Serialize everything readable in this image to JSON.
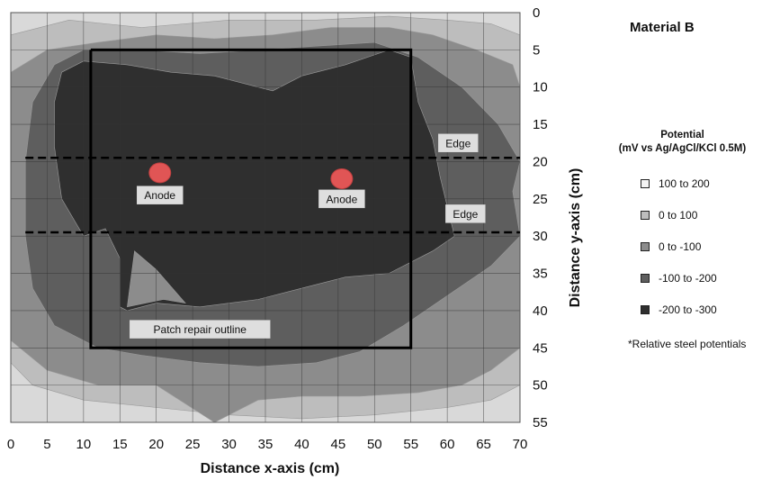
{
  "chart_data": {
    "type": "heatmap",
    "title": "Material B",
    "xlabel": "Distance x-axis (cm)",
    "ylabel": "Distance y-axis (cm)",
    "xlim": [
      0,
      70
    ],
    "ylim": [
      0,
      55
    ],
    "y_inverted": true,
    "x_ticks": [
      0,
      5,
      10,
      15,
      20,
      25,
      30,
      35,
      40,
      45,
      50,
      55,
      60,
      65,
      70
    ],
    "y_ticks": [
      0,
      5,
      10,
      15,
      20,
      25,
      30,
      35,
      40,
      45,
      50,
      55
    ],
    "grid": true,
    "legend": {
      "title_line1": "Potential",
      "title_line2": "(mV vs Ag/AgCl/KCl 0.5M)",
      "position": "right",
      "items": [
        {
          "label": "100 to 200",
          "color": "#f4f4f4"
        },
        {
          "label": "0 to 100",
          "color": "#bdbdbd"
        },
        {
          "label": "0 to -100",
          "color": "#8c8c8c"
        },
        {
          "label": "-100 to -200",
          "color": "#5e5e5e"
        },
        {
          "label": "-200 to -300",
          "color": "#2f2f2f"
        }
      ]
    },
    "note": "*Relative steel potentials",
    "contours": [
      {
        "level": "0 to 100",
        "points": [
          [
            0,
            3
          ],
          [
            8,
            1
          ],
          [
            18,
            2
          ],
          [
            30,
            1
          ],
          [
            42,
            1
          ],
          [
            52,
            0.5
          ],
          [
            60,
            1
          ],
          [
            66,
            1.5
          ],
          [
            70,
            3
          ],
          [
            70,
            50
          ],
          [
            66,
            52
          ],
          [
            60,
            53
          ],
          [
            50,
            54
          ],
          [
            40,
            54.5
          ],
          [
            30,
            54
          ],
          [
            20,
            53
          ],
          [
            10,
            52
          ],
          [
            3,
            50
          ],
          [
            0,
            47
          ]
        ]
      },
      {
        "level": "0 to -100",
        "points": [
          [
            0,
            8
          ],
          [
            5,
            5
          ],
          [
            12,
            4
          ],
          [
            20,
            3
          ],
          [
            28,
            3.5
          ],
          [
            36,
            3
          ],
          [
            44,
            2
          ],
          [
            52,
            2
          ],
          [
            58,
            3
          ],
          [
            64,
            5
          ],
          [
            69,
            7
          ],
          [
            70,
            10
          ],
          [
            70,
            45
          ],
          [
            66,
            48
          ],
          [
            62,
            50
          ],
          [
            56,
            51
          ],
          [
            48,
            51.5
          ],
          [
            40,
            51.5
          ],
          [
            34,
            52
          ],
          [
            28,
            55
          ],
          [
            20,
            50
          ],
          [
            12,
            50
          ],
          [
            5,
            48
          ],
          [
            0,
            44
          ]
        ]
      },
      {
        "level": "-100 to -200",
        "points": [
          [
            3,
            12
          ],
          [
            6,
            7
          ],
          [
            10,
            5
          ],
          [
            18,
            5
          ],
          [
            26,
            5.5
          ],
          [
            34,
            5
          ],
          [
            42,
            4.5
          ],
          [
            50,
            4
          ],
          [
            56,
            6
          ],
          [
            62,
            10
          ],
          [
            67,
            15
          ],
          [
            70,
            20
          ],
          [
            69,
            24
          ],
          [
            70,
            30
          ],
          [
            66,
            34
          ],
          [
            60,
            38
          ],
          [
            54,
            42
          ],
          [
            48,
            45.5
          ],
          [
            42,
            47
          ],
          [
            34,
            47.5
          ],
          [
            26,
            47
          ],
          [
            18,
            46
          ],
          [
            12,
            45
          ],
          [
            6,
            42
          ],
          [
            3,
            37
          ],
          [
            2,
            30
          ],
          [
            2,
            20
          ]
        ]
      },
      {
        "level": "-200 to -300",
        "points": [
          [
            7,
            8
          ],
          [
            10,
            6.5
          ],
          [
            16,
            7
          ],
          [
            22,
            8
          ],
          [
            28,
            8.5
          ],
          [
            36,
            10.5
          ],
          [
            40,
            8.5
          ],
          [
            46,
            7
          ],
          [
            52,
            5
          ],
          [
            55,
            6
          ],
          [
            56,
            12
          ],
          [
            58,
            17
          ],
          [
            59,
            22
          ],
          [
            60,
            26
          ],
          [
            61,
            30
          ],
          [
            58,
            32
          ],
          [
            52,
            35
          ],
          [
            46,
            35.5
          ],
          [
            40,
            37
          ],
          [
            34,
            38.5
          ],
          [
            26,
            39.5
          ],
          [
            20,
            39
          ],
          [
            16,
            40
          ],
          [
            15,
            39.5
          ],
          [
            15,
            33
          ],
          [
            13,
            29
          ],
          [
            10,
            30
          ],
          [
            7,
            25
          ],
          [
            6,
            18
          ],
          [
            6,
            12
          ]
        ]
      },
      {
        "level": "0 to -100",
        "points": [
          [
            17,
            32
          ],
          [
            20,
            34.5
          ],
          [
            24,
            39
          ],
          [
            21,
            38.5
          ],
          [
            16,
            39.5
          ]
        ]
      }
    ],
    "lines": [
      {
        "name": "patch-outline",
        "style": "solid",
        "x": [
          11,
          55,
          55,
          11,
          11
        ],
        "y": [
          5,
          5,
          45,
          45,
          5
        ]
      },
      {
        "name": "edge-line-top",
        "style": "dashed",
        "x": [
          2,
          70
        ],
        "y": [
          19.5,
          19.5
        ]
      },
      {
        "name": "edge-line-bottom",
        "style": "dashed",
        "x": [
          2,
          70
        ],
        "y": [
          29.5,
          29.5
        ]
      }
    ],
    "anodes": [
      {
        "x": 20.5,
        "y": 21.5,
        "color": "#e05555"
      },
      {
        "x": 45.5,
        "y": 22.3,
        "color": "#e05555"
      }
    ],
    "annotations": [
      {
        "text": "Anode",
        "x": 20.5,
        "y": 24.5
      },
      {
        "text": "Anode",
        "x": 45.5,
        "y": 25
      },
      {
        "text": "Edge",
        "x": 61.5,
        "y": 17.5
      },
      {
        "text": "Edge",
        "x": 62.5,
        "y": 27
      },
      {
        "text": "Patch repair outline",
        "x": 26,
        "y": 42.5
      }
    ]
  }
}
